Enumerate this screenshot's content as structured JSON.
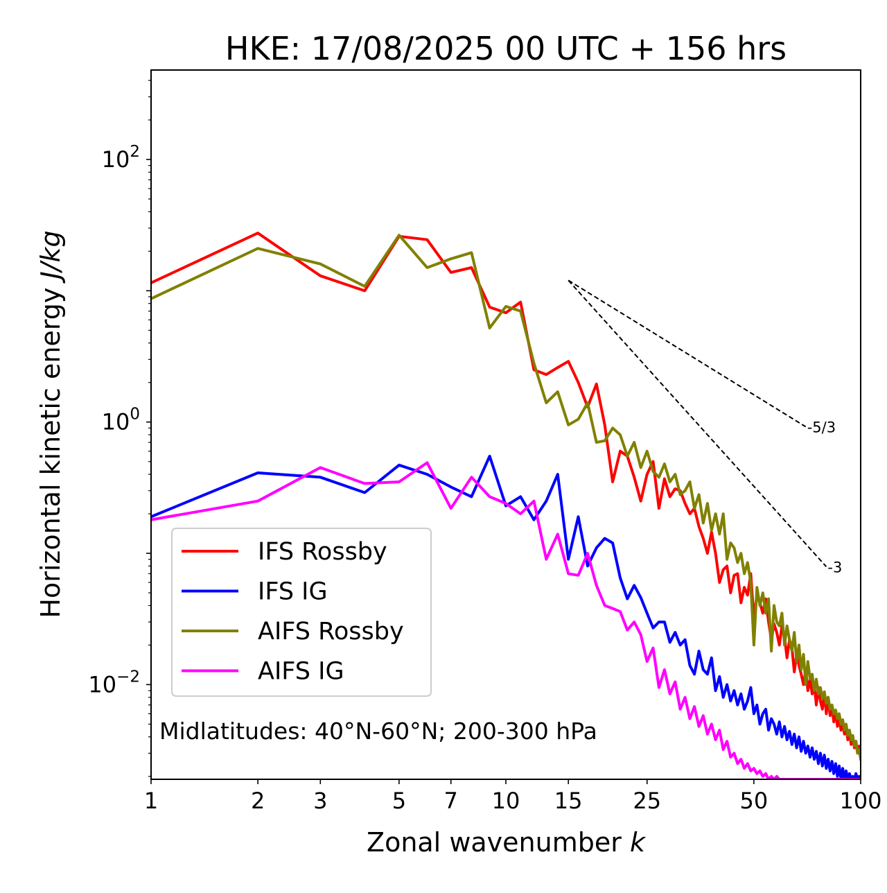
{
  "chart_data": {
    "type": "line",
    "title": "HKE: 17/08/2025 00 UTC + 156 hrs",
    "xlabel": "Zonal wavenumber",
    "xlabel_var": "k",
    "ylabel": "Horizontal kinetic energy",
    "ylabel_units": "J/kg",
    "xscale": "log",
    "yscale": "log",
    "xlim": [
      1,
      100
    ],
    "ylim": [
      0.0019,
      480
    ],
    "x_ticks": [
      {
        "value": 1,
        "label": "1"
      },
      {
        "value": 2,
        "label": "2"
      },
      {
        "value": 3,
        "label": "3"
      },
      {
        "value": 5,
        "label": "5"
      },
      {
        "value": 7,
        "label": "7"
      },
      {
        "value": 10,
        "label": "10"
      },
      {
        "value": 15,
        "label": "15"
      },
      {
        "value": 25,
        "label": "25"
      },
      {
        "value": 50,
        "label": "50"
      },
      {
        "value": 100,
        "label": "100"
      }
    ],
    "y_ticks": [
      {
        "value": 100,
        "base": "10",
        "exp": "2"
      },
      {
        "value": 1,
        "base": "10",
        "exp": "0"
      },
      {
        "value": 0.01,
        "base": "10",
        "exp": "−2"
      }
    ],
    "annotation": "Midlatitudes: 40°N-60°N; 200-300 hPa",
    "legend_position": "lower-left",
    "reference_lines": [
      {
        "label": "-5/3",
        "slope": -1.6667,
        "x": [
          15,
          70
        ],
        "y0": 12.0
      },
      {
        "label": "-3",
        "slope": -3,
        "x": [
          15,
          80
        ],
        "y0": 12.0
      }
    ],
    "series": [
      {
        "name": "IFS Rossby",
        "color": "#ff0000",
        "x": [
          1,
          2,
          3,
          4,
          5,
          6,
          7,
          8,
          9,
          10,
          11,
          12,
          13,
          14,
          15,
          16,
          17,
          18,
          19,
          20,
          21,
          22,
          23,
          24,
          25,
          26,
          27,
          28,
          29,
          30,
          31,
          32,
          33,
          34,
          35,
          36,
          37,
          38,
          39,
          40,
          41,
          42,
          43,
          44,
          45,
          46,
          47,
          48,
          49,
          50,
          51,
          52,
          53,
          54,
          55,
          56,
          57,
          58,
          59,
          60,
          61,
          62,
          63,
          64,
          65,
          66,
          67,
          68,
          69,
          70,
          71,
          72,
          73,
          74,
          75,
          76,
          77,
          78,
          79,
          80,
          81,
          82,
          83,
          84,
          85,
          86,
          87,
          88,
          89,
          90,
          91,
          92,
          93,
          94,
          95,
          96,
          97,
          98,
          99,
          100
        ],
        "y": [
          11.5,
          27.5,
          13.0,
          10.0,
          26.0,
          24.5,
          13.8,
          15.0,
          7.5,
          6.8,
          8.2,
          2.5,
          2.3,
          2.6,
          2.9,
          2.0,
          1.3,
          1.95,
          0.95,
          0.35,
          0.6,
          0.55,
          0.38,
          0.25,
          0.4,
          0.5,
          0.22,
          0.37,
          0.27,
          0.31,
          0.3,
          0.24,
          0.2,
          0.22,
          0.16,
          0.13,
          0.1,
          0.145,
          0.1,
          0.06,
          0.075,
          0.08,
          0.05,
          0.068,
          0.07,
          0.042,
          0.055,
          0.048,
          0.07,
          0.032,
          0.048,
          0.042,
          0.035,
          0.045,
          0.03,
          0.022,
          0.029,
          0.025,
          0.02,
          0.028,
          0.023,
          0.016,
          0.022,
          0.019,
          0.0125,
          0.017,
          0.014,
          0.012,
          0.01,
          0.013,
          0.009,
          0.011,
          0.0085,
          0.01,
          0.007,
          0.0095,
          0.0075,
          0.0065,
          0.0088,
          0.006,
          0.008,
          0.0058,
          0.0068,
          0.0052,
          0.0062,
          0.0048,
          0.0056,
          0.0045,
          0.005,
          0.0042,
          0.0046,
          0.0038,
          0.0044,
          0.0035,
          0.004,
          0.0033,
          0.0037,
          0.003,
          0.0034,
          0.0028
        ]
      },
      {
        "name": "IFS IG",
        "color": "#0000ff",
        "x": [
          1,
          2,
          3,
          4,
          5,
          6,
          7,
          8,
          9,
          10,
          11,
          12,
          13,
          14,
          15,
          16,
          17,
          18,
          19,
          20,
          21,
          22,
          23,
          24,
          25,
          26,
          27,
          28,
          29,
          30,
          31,
          32,
          33,
          34,
          35,
          36,
          37,
          38,
          39,
          40,
          41,
          42,
          43,
          44,
          45,
          46,
          47,
          48,
          49,
          50,
          51,
          52,
          53,
          54,
          55,
          56,
          57,
          58,
          59,
          60,
          61,
          62,
          63,
          64,
          65,
          66,
          67,
          68,
          69,
          70,
          71,
          72,
          73,
          74,
          75,
          76,
          77,
          78,
          79,
          80,
          81,
          82,
          83,
          84,
          85,
          86,
          87,
          88,
          89,
          90,
          91,
          92,
          93,
          94,
          95,
          96,
          97,
          98,
          99,
          100
        ],
        "y": [
          0.19,
          0.41,
          0.38,
          0.29,
          0.47,
          0.4,
          0.32,
          0.27,
          0.55,
          0.23,
          0.27,
          0.18,
          0.25,
          0.4,
          0.09,
          0.19,
          0.08,
          0.11,
          0.13,
          0.12,
          0.065,
          0.045,
          0.057,
          0.046,
          0.035,
          0.027,
          0.03,
          0.03,
          0.021,
          0.025,
          0.02,
          0.022,
          0.014,
          0.012,
          0.018,
          0.013,
          0.012,
          0.016,
          0.009,
          0.0115,
          0.008,
          0.01,
          0.0075,
          0.009,
          0.007,
          0.0085,
          0.0065,
          0.0075,
          0.0095,
          0.006,
          0.007,
          0.005,
          0.006,
          0.0065,
          0.0045,
          0.0055,
          0.005,
          0.0042,
          0.0052,
          0.004,
          0.0048,
          0.0038,
          0.0044,
          0.0035,
          0.0042,
          0.0033,
          0.004,
          0.0031,
          0.0037,
          0.003,
          0.0034,
          0.0028,
          0.0033,
          0.0027,
          0.0031,
          0.0025,
          0.003,
          0.0024,
          0.0029,
          0.0023,
          0.0027,
          0.0022,
          0.0026,
          0.0021,
          0.0025,
          0.002,
          0.0024,
          0.0019,
          0.0023,
          0.0019,
          0.0022,
          0.0019,
          0.0021,
          0.0019,
          0.002,
          0.0019,
          0.0021,
          0.0019,
          0.002,
          0.0019
        ]
      },
      {
        "name": "AIFS Rossby",
        "color": "#808000",
        "x": [
          1,
          2,
          3,
          4,
          5,
          6,
          7,
          8,
          9,
          10,
          11,
          12,
          13,
          14,
          15,
          16,
          17,
          18,
          19,
          20,
          21,
          22,
          23,
          24,
          25,
          26,
          27,
          28,
          29,
          30,
          31,
          32,
          33,
          34,
          35,
          36,
          37,
          38,
          39,
          40,
          41,
          42,
          43,
          44,
          45,
          46,
          47,
          48,
          49,
          50,
          51,
          52,
          53,
          54,
          55,
          56,
          57,
          58,
          59,
          60,
          61,
          62,
          63,
          64,
          65,
          66,
          67,
          68,
          69,
          70,
          71,
          72,
          73,
          74,
          75,
          76,
          77,
          78,
          79,
          80,
          81,
          82,
          83,
          84,
          85,
          86,
          87,
          88,
          89,
          90,
          91,
          92,
          93,
          94,
          95,
          96,
          97,
          98,
          99,
          100
        ],
        "y": [
          8.7,
          21.0,
          16.0,
          10.8,
          26.5,
          15.0,
          17.5,
          19.5,
          5.2,
          7.6,
          7.0,
          2.8,
          1.4,
          1.7,
          0.95,
          1.05,
          1.4,
          0.7,
          0.72,
          0.9,
          0.8,
          0.55,
          0.7,
          0.45,
          0.6,
          0.42,
          0.38,
          0.48,
          0.35,
          0.4,
          0.28,
          0.3,
          0.35,
          0.22,
          0.28,
          0.17,
          0.24,
          0.15,
          0.2,
          0.14,
          0.2,
          0.09,
          0.12,
          0.11,
          0.085,
          0.1,
          0.07,
          0.085,
          0.06,
          0.02,
          0.055,
          0.04,
          0.05,
          0.035,
          0.045,
          0.018,
          0.04,
          0.03,
          0.028,
          0.035,
          0.02,
          0.028,
          0.022,
          0.018,
          0.025,
          0.015,
          0.02,
          0.013,
          0.017,
          0.01,
          0.015,
          0.011,
          0.012,
          0.009,
          0.011,
          0.0085,
          0.0095,
          0.0078,
          0.0088,
          0.0072,
          0.008,
          0.0065,
          0.007,
          0.006,
          0.0064,
          0.0055,
          0.006,
          0.005,
          0.0054,
          0.0045,
          0.005,
          0.0041,
          0.0045,
          0.0038,
          0.0041,
          0.0034,
          0.0037,
          0.003,
          0.0032,
          0.0027
        ]
      },
      {
        "name": "AIFS IG",
        "color": "#ff00ff",
        "x": [
          1,
          2,
          3,
          4,
          5,
          6,
          7,
          8,
          9,
          10,
          11,
          12,
          13,
          14,
          15,
          16,
          17,
          18,
          19,
          20,
          21,
          22,
          23,
          24,
          25,
          26,
          27,
          28,
          29,
          30,
          31,
          32,
          33,
          34,
          35,
          36,
          37,
          38,
          39,
          40,
          41,
          42,
          43,
          44,
          45,
          46,
          47,
          48,
          49,
          50,
          51,
          52,
          53,
          54,
          55,
          56,
          57,
          58,
          59,
          60,
          61,
          62,
          63,
          64,
          65,
          66,
          67,
          68,
          69,
          70,
          71,
          72,
          73,
          74,
          75,
          76,
          77,
          78,
          79,
          80,
          81,
          82,
          83,
          84,
          85,
          86,
          87,
          88,
          89,
          90,
          91,
          92,
          93,
          94,
          95,
          96,
          97,
          98,
          99,
          100
        ],
        "y": [
          0.18,
          0.25,
          0.45,
          0.34,
          0.35,
          0.49,
          0.22,
          0.38,
          0.27,
          0.24,
          0.2,
          0.25,
          0.09,
          0.14,
          0.07,
          0.068,
          0.1,
          0.057,
          0.04,
          0.038,
          0.036,
          0.026,
          0.03,
          0.024,
          0.015,
          0.019,
          0.0095,
          0.013,
          0.0085,
          0.0105,
          0.0065,
          0.008,
          0.0055,
          0.0068,
          0.0048,
          0.0058,
          0.0042,
          0.005,
          0.0038,
          0.0045,
          0.0032,
          0.0037,
          0.0028,
          0.003,
          0.0025,
          0.0027,
          0.0023,
          0.0025,
          0.0022,
          0.0023,
          0.0021,
          0.0022,
          0.002,
          0.0021,
          0.0019,
          0.002,
          0.0019,
          0.002,
          0.0019,
          0.0019,
          0.0019,
          0.0019,
          0.0019,
          0.0019,
          0.0019,
          0.0019,
          0.0019,
          0.0019,
          0.0019,
          0.0019,
          0.0019,
          0.0019,
          0.0019,
          0.0019,
          0.0019,
          0.0019,
          0.0019,
          0.0019,
          0.0019,
          0.0019,
          0.0019,
          0.0019,
          0.0019,
          0.0019,
          0.0019,
          0.0019,
          0.0019,
          0.0019,
          0.0019,
          0.0019,
          0.0019,
          0.0019,
          0.0019,
          0.0019,
          0.0019,
          0.0019,
          0.0019,
          0.0019,
          0.0019,
          0.0019
        ]
      }
    ]
  }
}
